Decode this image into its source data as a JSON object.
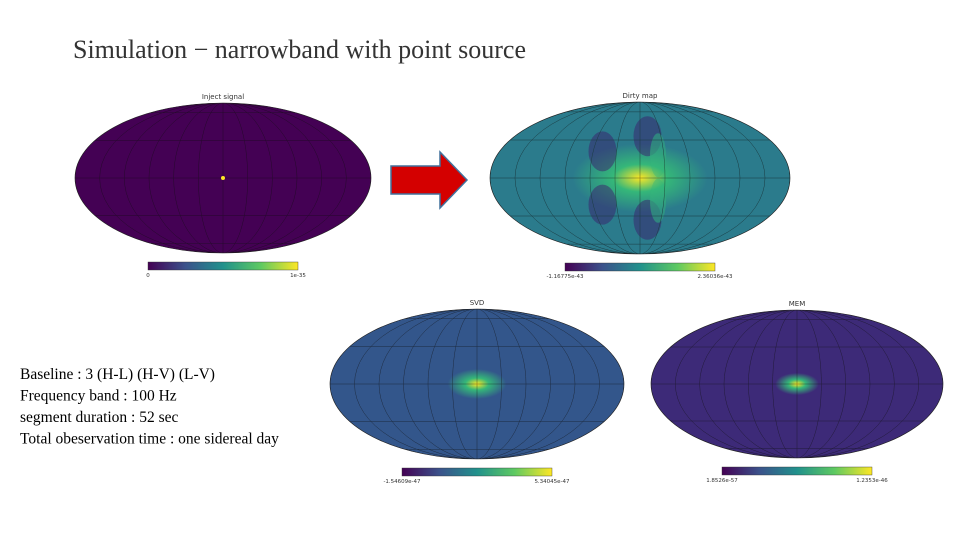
{
  "title": "Simulation − narrowband with point source",
  "panels": [
    {
      "title": "Inject signal",
      "colorbar": {
        "min": "0",
        "max": "1e-35"
      }
    },
    {
      "title": "Dirty map",
      "colorbar": {
        "min": "-1.16775e-43",
        "max": "2.36036e-43"
      }
    },
    {
      "title": "SVD",
      "colorbar": {
        "min": "-1.54609e-47",
        "max": "5.34045e-47"
      }
    },
    {
      "title": "MEM",
      "colorbar": {
        "min": "1.8526e-57",
        "max": "1.2353e-46"
      }
    }
  ],
  "notes": [
    "Baseline : 3 (H-L) (H-V) (L-V)",
    "Frequency band : 100 Hz",
    "segment duration : 52 sec",
    "Total obeservation time :  one sidereal day"
  ]
}
